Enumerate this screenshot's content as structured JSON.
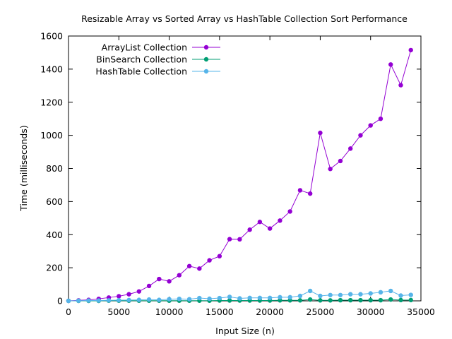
{
  "chart_data": {
    "type": "line",
    "title": "Resizable Array vs Sorted Array vs HashTable Collection Sort Performance",
    "xlabel": "Input Size (n)",
    "ylabel": "Time (milliseconds)",
    "xlim": [
      0,
      35000
    ],
    "ylim": [
      0,
      1600
    ],
    "xticks": [
      0,
      5000,
      10000,
      15000,
      20000,
      25000,
      30000,
      35000
    ],
    "yticks": [
      0,
      200,
      400,
      600,
      800,
      1000,
      1200,
      1400,
      1600
    ],
    "grid": false,
    "legend": "top-left",
    "x": [
      0,
      1000,
      2000,
      3000,
      4000,
      5000,
      6000,
      7000,
      8000,
      9000,
      10000,
      11000,
      12000,
      13000,
      14000,
      15000,
      16000,
      17000,
      18000,
      19000,
      20000,
      21000,
      22000,
      23000,
      24000,
      25000,
      26000,
      27000,
      28000,
      29000,
      30000,
      31000,
      32000,
      33000,
      34000
    ],
    "series": [
      {
        "name": "ArrayList Collection",
        "color": "#9400d3",
        "values": [
          0,
          3,
          6,
          12,
          20,
          28,
          40,
          57,
          90,
          132,
          118,
          155,
          210,
          195,
          245,
          270,
          373,
          372,
          430,
          477,
          437,
          485,
          540,
          668,
          648,
          1015,
          797,
          845,
          920,
          1000,
          1060,
          1100,
          1428,
          1303,
          1515
        ]
      },
      {
        "name": "BinSearch Collection",
        "color": "#009e73",
        "values": [
          0,
          0,
          0,
          0,
          1,
          1,
          1,
          1,
          1,
          1,
          1,
          1,
          1,
          1,
          1,
          2,
          2,
          2,
          2,
          2,
          2,
          3,
          3,
          3,
          8,
          3,
          3,
          4,
          4,
          4,
          4,
          4,
          8,
          5,
          5
        ]
      },
      {
        "name": "HashTable Collection",
        "color": "#56b4e9",
        "values": [
          0,
          1,
          2,
          2,
          3,
          4,
          5,
          6,
          8,
          6,
          10,
          12,
          10,
          17,
          13,
          17,
          24,
          15,
          18,
          18,
          18,
          22,
          22,
          30,
          60,
          30,
          35,
          35,
          40,
          40,
          45,
          52,
          60,
          32,
          36
        ]
      }
    ]
  }
}
